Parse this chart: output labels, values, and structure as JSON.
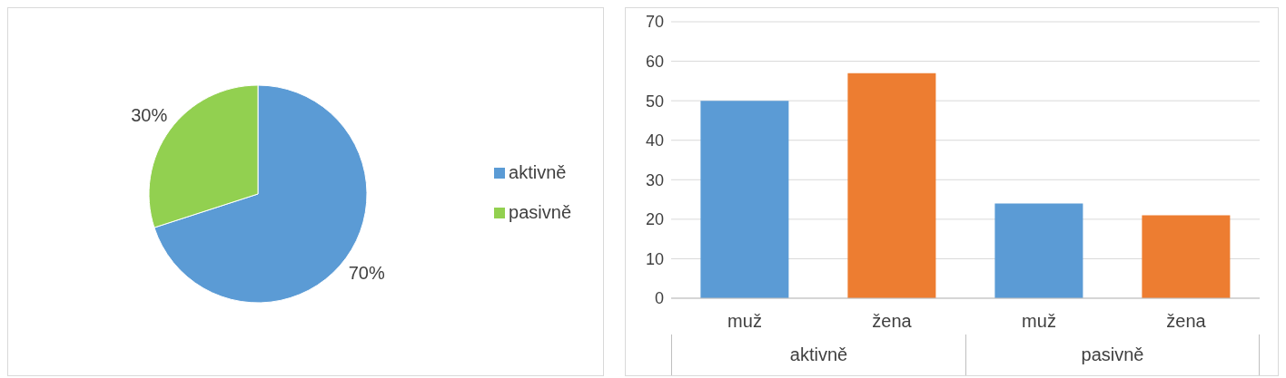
{
  "chart_data": [
    {
      "type": "pie",
      "categories": [
        "aktivně",
        "pasivně"
      ],
      "values": [
        70,
        30
      ],
      "colors": [
        "#5b9bd5",
        "#92d050"
      ],
      "value_labels": [
        "70%",
        "30%"
      ],
      "legend": "right"
    },
    {
      "type": "bar",
      "categories": [
        "muž",
        "žena",
        "muž",
        "žena"
      ],
      "values": [
        50,
        57,
        24,
        21
      ],
      "colors": [
        "#5b9bd5",
        "#ed7d31",
        "#5b9bd5",
        "#ed7d31"
      ],
      "ylim": [
        0,
        70
      ],
      "yticks": [
        0,
        10,
        20,
        30,
        40,
        50,
        60,
        70
      ],
      "grid": "y",
      "annotations": [
        "aktivně",
        "pasivně"
      ]
    }
  ]
}
